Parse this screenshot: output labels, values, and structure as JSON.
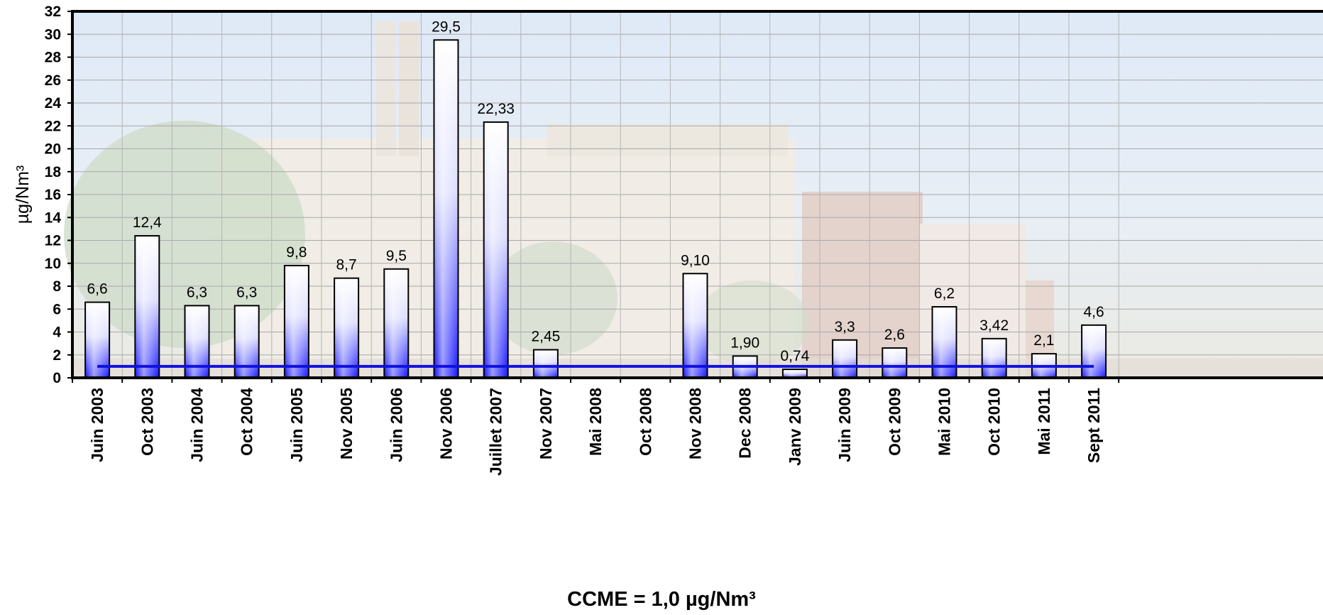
{
  "chart_data": {
    "type": "bar",
    "ylabel": "µg/Nm³",
    "ylim": [
      0,
      32
    ],
    "yticks": [
      0,
      2,
      4,
      6,
      8,
      10,
      12,
      14,
      16,
      18,
      20,
      22,
      24,
      26,
      28,
      30,
      32
    ],
    "grid": true,
    "categories": [
      "Juin 2003",
      "Oct 2003",
      "Juin 2004",
      "Oct 2004",
      "Juin 2005",
      "Nov 2005",
      "Juin 2006",
      "Nov 2006",
      "Juillet 2007",
      "Nov 2007",
      "Mai 2008",
      "Oct 2008",
      "Nov 2008",
      "Dec 2008",
      "Janv 2009",
      "Juin 2009",
      "Oct 2009",
      "Mai 2010",
      "Oct 2010",
      "Mai 2011",
      "Sept 2011"
    ],
    "values": [
      6.6,
      12.4,
      6.3,
      6.3,
      9.8,
      8.7,
      9.5,
      29.5,
      22.33,
      2.45,
      null,
      null,
      9.1,
      1.9,
      0.74,
      3.3,
      2.6,
      6.2,
      3.42,
      2.1,
      4.6
    ],
    "value_labels": [
      "6,6",
      "12,4",
      "6,3",
      "6,3",
      "9,8",
      "8,7",
      "9,5",
      "29,5",
      "22,33",
      "2,45",
      "",
      "",
      "9,10",
      "1,90",
      "0,74",
      "3,3",
      "2,6",
      "6,2",
      "3,42",
      "2,1",
      "4,6"
    ],
    "reference_line": {
      "value": 1.0,
      "color": "#1010e0"
    },
    "bar_gradient": {
      "top": "#ffffff",
      "bottom": "#1a1aff"
    }
  },
  "footnote": "CCME = 1,0 µg/Nm³"
}
